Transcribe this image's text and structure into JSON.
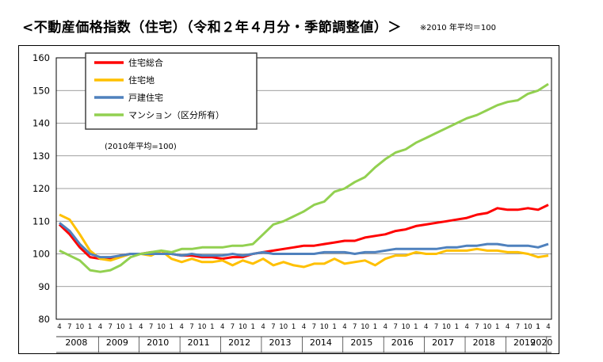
{
  "header": {
    "title": "<不動産価格指数（住宅）（令和２年４月分・季節調整値）＞",
    "note": "※2010 年平均＝100"
  },
  "colors": {
    "total": "#ff0000",
    "land": "#ffc000",
    "detached": "#4f81bd",
    "condo": "#92d050",
    "grid": "#7f7f7f",
    "frame": "#000000"
  },
  "chart_data": {
    "type": "line",
    "title": "",
    "xlabel": "",
    "ylabel": "",
    "ylim": [
      80,
      160
    ],
    "yticks": [
      "80",
      "90",
      "100",
      "110",
      "120",
      "130",
      "140",
      "150",
      "160"
    ],
    "grid": true,
    "legend_position": "top-left",
    "legend_note": "(2010年平均=100)",
    "year_labels": [
      "2008",
      "2009",
      "2010",
      "2011",
      "2012",
      "2013",
      "2014",
      "2015",
      "2016",
      "2017",
      "2018",
      "2019",
      "2020"
    ],
    "month_labels": [
      "4",
      "7",
      "10",
      "1"
    ],
    "month_labels_2020": [
      "1",
      "4"
    ],
    "x_start": "2008-04",
    "x_end": "2020-04",
    "series": [
      {
        "name": "住宅総合",
        "color_key": "total",
        "points": [
          [
            "2008-04",
            109
          ],
          [
            "2008-07",
            106
          ],
          [
            "2008-10",
            102
          ],
          [
            "2009-01",
            99
          ],
          [
            "2009-04",
            98.5
          ],
          [
            "2009-07",
            98.5
          ],
          [
            "2009-10",
            99.5
          ],
          [
            "2010-01",
            100
          ],
          [
            "2010-04",
            100
          ],
          [
            "2010-07",
            100.5
          ],
          [
            "2010-10",
            100
          ],
          [
            "2011-01",
            100
          ],
          [
            "2011-04",
            99.5
          ],
          [
            "2011-07",
            99.5
          ],
          [
            "2011-10",
            99
          ],
          [
            "2012-01",
            99
          ],
          [
            "2012-04",
            98.5
          ],
          [
            "2012-07",
            99
          ],
          [
            "2012-10",
            99
          ],
          [
            "2013-01",
            100
          ],
          [
            "2013-04",
            100.5
          ],
          [
            "2013-07",
            101
          ],
          [
            "2013-10",
            101.5
          ],
          [
            "2014-01",
            102
          ],
          [
            "2014-04",
            102.5
          ],
          [
            "2014-07",
            102.5
          ],
          [
            "2014-10",
            103
          ],
          [
            "2015-01",
            103.5
          ],
          [
            "2015-04",
            104
          ],
          [
            "2015-07",
            104
          ],
          [
            "2015-10",
            105
          ],
          [
            "2016-01",
            105.5
          ],
          [
            "2016-04",
            106
          ],
          [
            "2016-07",
            107
          ],
          [
            "2016-10",
            107.5
          ],
          [
            "2017-01",
            108.5
          ],
          [
            "2017-04",
            109
          ],
          [
            "2017-07",
            109.5
          ],
          [
            "2017-10",
            110
          ],
          [
            "2018-01",
            110.5
          ],
          [
            "2018-04",
            111
          ],
          [
            "2018-07",
            112
          ],
          [
            "2018-10",
            112.5
          ],
          [
            "2019-01",
            114
          ],
          [
            "2019-04",
            113.5
          ],
          [
            "2019-07",
            113.5
          ],
          [
            "2019-10",
            114
          ],
          [
            "2020-01",
            113.5
          ],
          [
            "2020-04",
            115
          ]
        ]
      },
      {
        "name": "住宅地",
        "color_key": "land",
        "points": [
          [
            "2008-04",
            112
          ],
          [
            "2008-07",
            110.5
          ],
          [
            "2008-10",
            106
          ],
          [
            "2009-01",
            101
          ],
          [
            "2009-04",
            98.5
          ],
          [
            "2009-07",
            98
          ],
          [
            "2009-10",
            99
          ],
          [
            "2010-01",
            100
          ],
          [
            "2010-04",
            100
          ],
          [
            "2010-07",
            99.5
          ],
          [
            "2010-10",
            101
          ],
          [
            "2011-01",
            98.5
          ],
          [
            "2011-04",
            97.5
          ],
          [
            "2011-07",
            98.5
          ],
          [
            "2011-10",
            97.5
          ],
          [
            "2012-01",
            97.5
          ],
          [
            "2012-04",
            98
          ],
          [
            "2012-07",
            96.5
          ],
          [
            "2012-10",
            98
          ],
          [
            "2013-01",
            97
          ],
          [
            "2013-04",
            98.5
          ],
          [
            "2013-07",
            96.5
          ],
          [
            "2013-10",
            97.5
          ],
          [
            "2014-01",
            96.5
          ],
          [
            "2014-04",
            96
          ],
          [
            "2014-07",
            97
          ],
          [
            "2014-10",
            97
          ],
          [
            "2015-01",
            98.5
          ],
          [
            "2015-04",
            97
          ],
          [
            "2015-07",
            97.5
          ],
          [
            "2015-10",
            98
          ],
          [
            "2016-01",
            96.5
          ],
          [
            "2016-04",
            98.5
          ],
          [
            "2016-07",
            99.5
          ],
          [
            "2016-10",
            99.5
          ],
          [
            "2017-01",
            100.5
          ],
          [
            "2017-04",
            100
          ],
          [
            "2017-07",
            100
          ],
          [
            "2017-10",
            101
          ],
          [
            "2018-01",
            101
          ],
          [
            "2018-04",
            101
          ],
          [
            "2018-07",
            101.5
          ],
          [
            "2018-10",
            101
          ],
          [
            "2019-01",
            101
          ],
          [
            "2019-04",
            100.5
          ],
          [
            "2019-07",
            100.5
          ],
          [
            "2019-10",
            100
          ],
          [
            "2020-01",
            99
          ],
          [
            "2020-04",
            99.5
          ]
        ]
      },
      {
        "name": "戸建住宅",
        "color_key": "detached",
        "points": [
          [
            "2008-04",
            109.5
          ],
          [
            "2008-07",
            107
          ],
          [
            "2008-10",
            103
          ],
          [
            "2009-01",
            100
          ],
          [
            "2009-04",
            99
          ],
          [
            "2009-07",
            99
          ],
          [
            "2009-10",
            99.5
          ],
          [
            "2010-01",
            100
          ],
          [
            "2010-04",
            100
          ],
          [
            "2010-07",
            100
          ],
          [
            "2010-10",
            100
          ],
          [
            "2011-01",
            100
          ],
          [
            "2011-04",
            99.5
          ],
          [
            "2011-07",
            100
          ],
          [
            "2011-10",
            99.5
          ],
          [
            "2012-01",
            99.5
          ],
          [
            "2012-04",
            99.5
          ],
          [
            "2012-07",
            100
          ],
          [
            "2012-10",
            99.5
          ],
          [
            "2013-01",
            100
          ],
          [
            "2013-04",
            100.5
          ],
          [
            "2013-07",
            100
          ],
          [
            "2013-10",
            100
          ],
          [
            "2014-01",
            100
          ],
          [
            "2014-04",
            100
          ],
          [
            "2014-07",
            100
          ],
          [
            "2014-10",
            100.5
          ],
          [
            "2015-01",
            100.5
          ],
          [
            "2015-04",
            100.5
          ],
          [
            "2015-07",
            100
          ],
          [
            "2015-10",
            100.5
          ],
          [
            "2016-01",
            100.5
          ],
          [
            "2016-04",
            101
          ],
          [
            "2016-07",
            101.5
          ],
          [
            "2016-10",
            101.5
          ],
          [
            "2017-01",
            101.5
          ],
          [
            "2017-04",
            101.5
          ],
          [
            "2017-07",
            101.5
          ],
          [
            "2017-10",
            102
          ],
          [
            "2018-01",
            102
          ],
          [
            "2018-04",
            102.5
          ],
          [
            "2018-07",
            102.5
          ],
          [
            "2018-10",
            103
          ],
          [
            "2019-01",
            103
          ],
          [
            "2019-04",
            102.5
          ],
          [
            "2019-07",
            102.5
          ],
          [
            "2019-10",
            102.5
          ],
          [
            "2020-01",
            102
          ],
          [
            "2020-04",
            103
          ]
        ]
      },
      {
        "name": "マンション（区分所有）",
        "color_key": "condo",
        "points": [
          [
            "2008-04",
            101
          ],
          [
            "2008-07",
            99.5
          ],
          [
            "2008-10",
            98
          ],
          [
            "2009-01",
            95
          ],
          [
            "2009-04",
            94.5
          ],
          [
            "2009-07",
            95
          ],
          [
            "2009-10",
            96.5
          ],
          [
            "2010-01",
            99
          ],
          [
            "2010-04",
            100
          ],
          [
            "2010-07",
            100.5
          ],
          [
            "2010-10",
            101
          ],
          [
            "2011-01",
            100.5
          ],
          [
            "2011-04",
            101.5
          ],
          [
            "2011-07",
            101.5
          ],
          [
            "2011-10",
            102
          ],
          [
            "2012-01",
            102
          ],
          [
            "2012-04",
            102
          ],
          [
            "2012-07",
            102.5
          ],
          [
            "2012-10",
            102.5
          ],
          [
            "2013-01",
            103
          ],
          [
            "2013-04",
            106
          ],
          [
            "2013-07",
            109
          ],
          [
            "2013-10",
            110
          ],
          [
            "2014-01",
            111.5
          ],
          [
            "2014-04",
            113
          ],
          [
            "2014-07",
            115
          ],
          [
            "2014-10",
            116
          ],
          [
            "2015-01",
            119
          ],
          [
            "2015-04",
            120
          ],
          [
            "2015-07",
            122
          ],
          [
            "2015-10",
            123.5
          ],
          [
            "2016-01",
            126.5
          ],
          [
            "2016-04",
            129
          ],
          [
            "2016-07",
            131
          ],
          [
            "2016-10",
            132
          ],
          [
            "2017-01",
            134
          ],
          [
            "2017-04",
            135.5
          ],
          [
            "2017-07",
            137
          ],
          [
            "2017-10",
            138.5
          ],
          [
            "2018-01",
            140
          ],
          [
            "2018-04",
            141.5
          ],
          [
            "2018-07",
            142.5
          ],
          [
            "2018-10",
            144
          ],
          [
            "2019-01",
            145.5
          ],
          [
            "2019-04",
            146.5
          ],
          [
            "2019-07",
            147
          ],
          [
            "2019-10",
            149
          ],
          [
            "2020-01",
            150
          ],
          [
            "2020-04",
            152
          ]
        ]
      }
    ]
  }
}
